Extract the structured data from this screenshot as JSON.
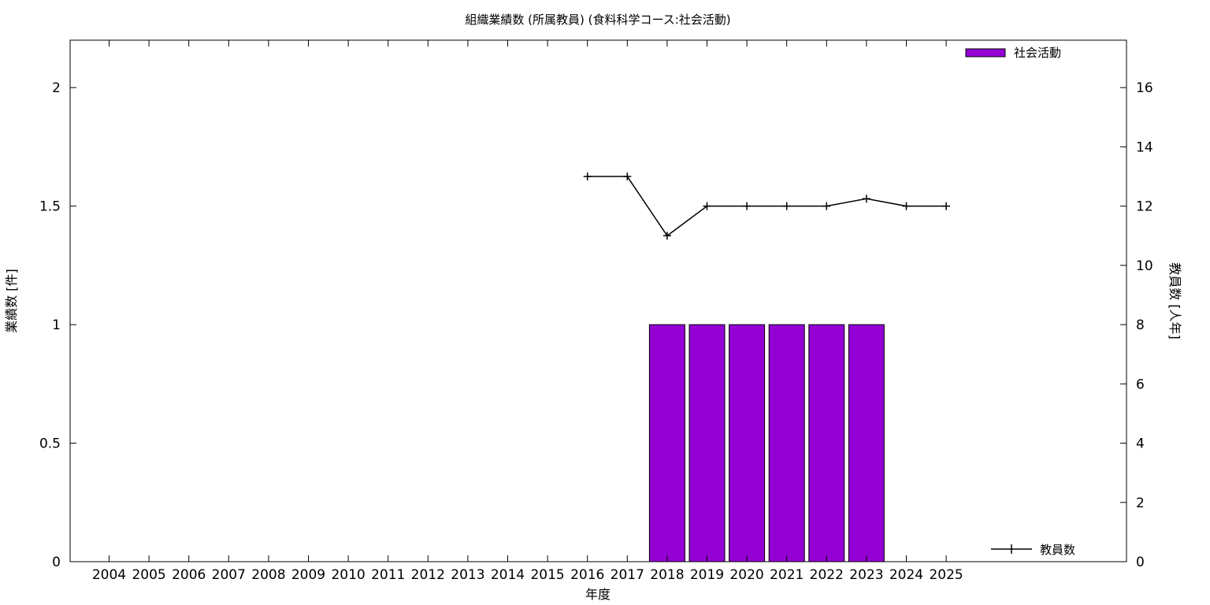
{
  "chart_data": {
    "type": "bar",
    "title": "組織業績数 (所属教員) (食料科学コース:社会活動)",
    "xlabel": "年度",
    "ylabel": "業績数 [件]",
    "y2label": "教員数 [人年]",
    "categories": [
      "2004",
      "2005",
      "2006",
      "2007",
      "2008",
      "2009",
      "2010",
      "2011",
      "2012",
      "2013",
      "2014",
      "2015",
      "2016",
      "2017",
      "2018",
      "2019",
      "2020",
      "2021",
      "2022",
      "2023",
      "2024",
      "2025"
    ],
    "ylim": [
      0,
      2.2
    ],
    "y_ticks": [
      "0",
      "0.5",
      "1",
      "1.5",
      "2"
    ],
    "y2lim": [
      0,
      17.6
    ],
    "y2_ticks": [
      "0",
      "2",
      "4",
      "6",
      "8",
      "10",
      "12",
      "14",
      "16"
    ],
    "grid": false,
    "series": [
      {
        "name": "社会活動",
        "type": "bar",
        "axis": "left",
        "color": "#9400d3",
        "values": [
          0,
          0,
          0,
          0,
          0,
          0,
          0,
          0,
          0,
          0,
          0,
          0,
          0,
          0,
          1,
          1,
          1,
          1,
          1,
          1,
          0,
          0
        ]
      },
      {
        "name": "教員数",
        "type": "line",
        "axis": "right",
        "color": "#000000",
        "marker": "plus",
        "values": [
          null,
          null,
          null,
          null,
          null,
          null,
          null,
          null,
          null,
          null,
          null,
          null,
          13,
          13,
          11,
          12,
          12,
          12,
          12,
          12.25,
          12,
          12
        ]
      }
    ],
    "legend": [
      {
        "label": "社会活動",
        "position": "top-right"
      },
      {
        "label": "教員数",
        "position": "bottom-right"
      }
    ]
  }
}
